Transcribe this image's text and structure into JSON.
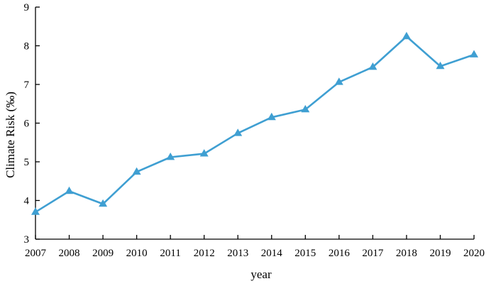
{
  "chart_data": {
    "type": "line",
    "title": "",
    "xlabel": "year",
    "ylabel": "Climate Risk (‰)",
    "x": [
      "2007",
      "2008",
      "2009",
      "2010",
      "2011",
      "2012",
      "2013",
      "2014",
      "2015",
      "2016",
      "2017",
      "2018",
      "2019",
      "2020"
    ],
    "series": [
      {
        "values": [
          3.7,
          4.24,
          3.91,
          4.74,
          5.12,
          5.21,
          5.74,
          6.15,
          6.35,
          7.06,
          7.45,
          8.24,
          7.47,
          7.77
        ],
        "marker": "triangle",
        "color": "#3f9fd2"
      }
    ],
    "ylim": [
      3,
      9
    ],
    "yticks": [
      "3",
      "4",
      "5",
      "6",
      "7",
      "8",
      "9"
    ],
    "grid": false,
    "legend": "none"
  }
}
